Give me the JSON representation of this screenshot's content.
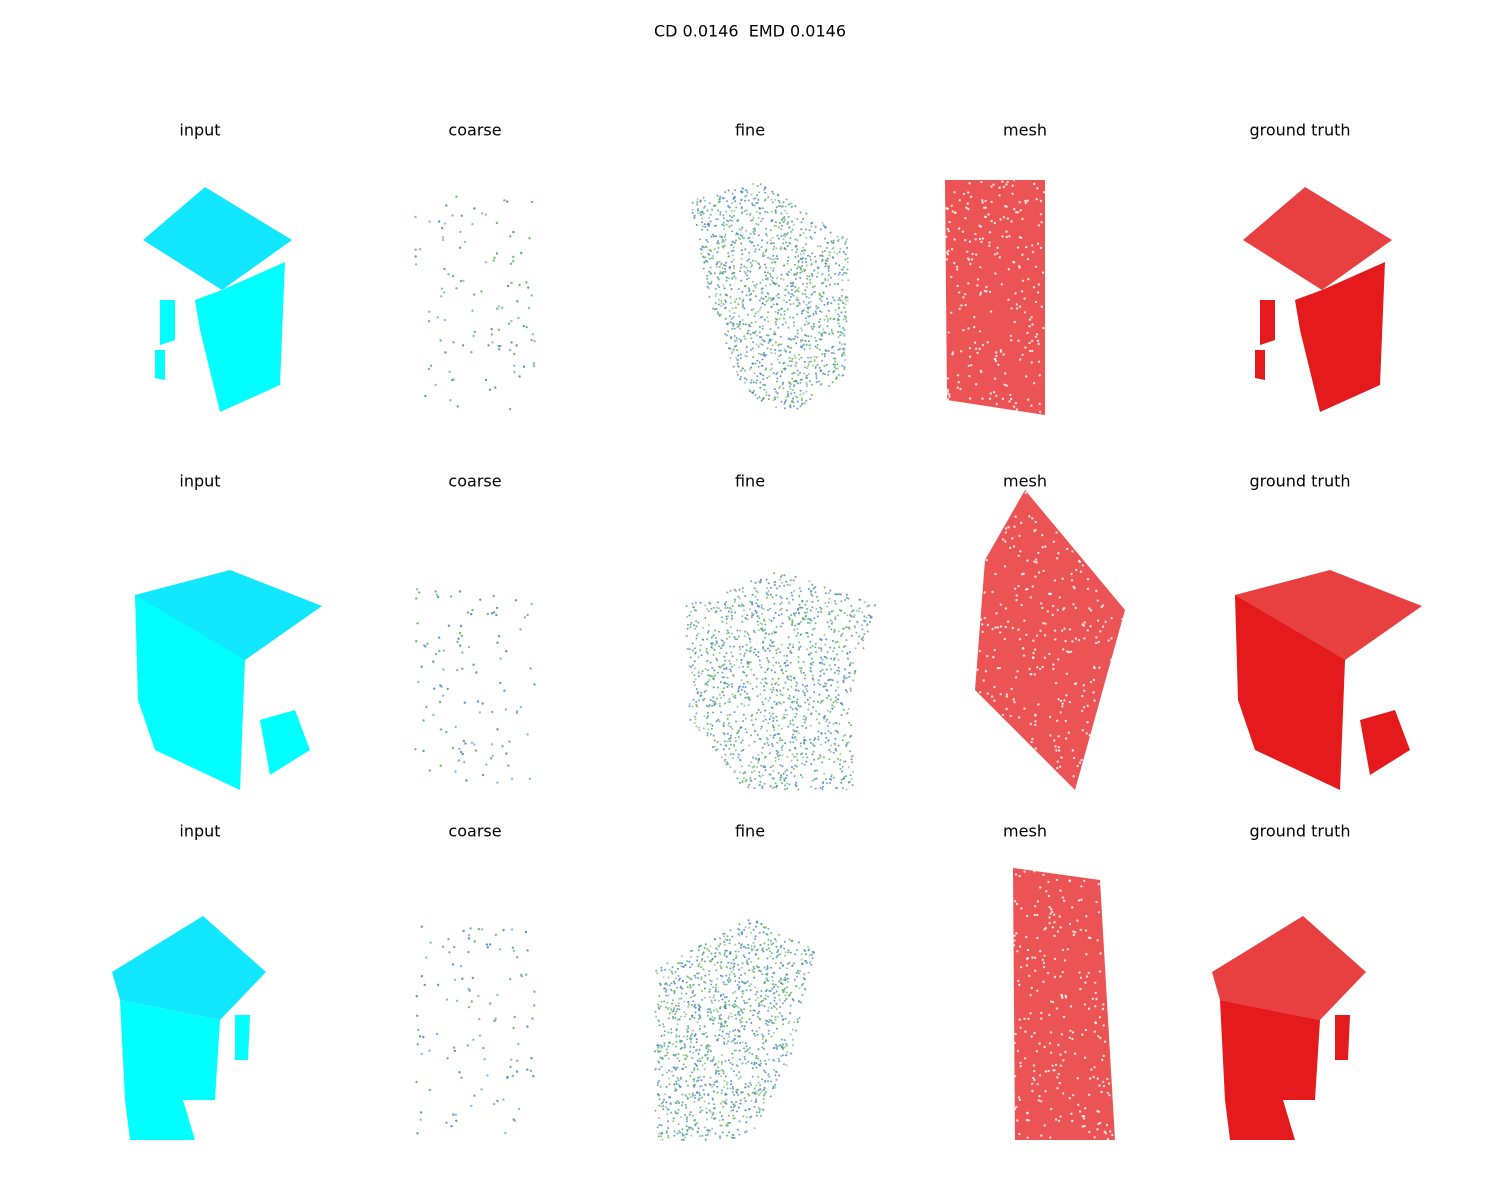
{
  "title": "CD 0.0146  EMD 0.0146",
  "rows": [
    {
      "panels": [
        "input",
        "coarse",
        "fine",
        "mesh",
        "ground truth"
      ]
    },
    {
      "panels": [
        "input",
        "coarse",
        "fine",
        "mesh",
        "ground truth"
      ]
    },
    {
      "panels": [
        "input",
        "coarse",
        "fine",
        "mesh",
        "ground truth"
      ]
    }
  ]
}
